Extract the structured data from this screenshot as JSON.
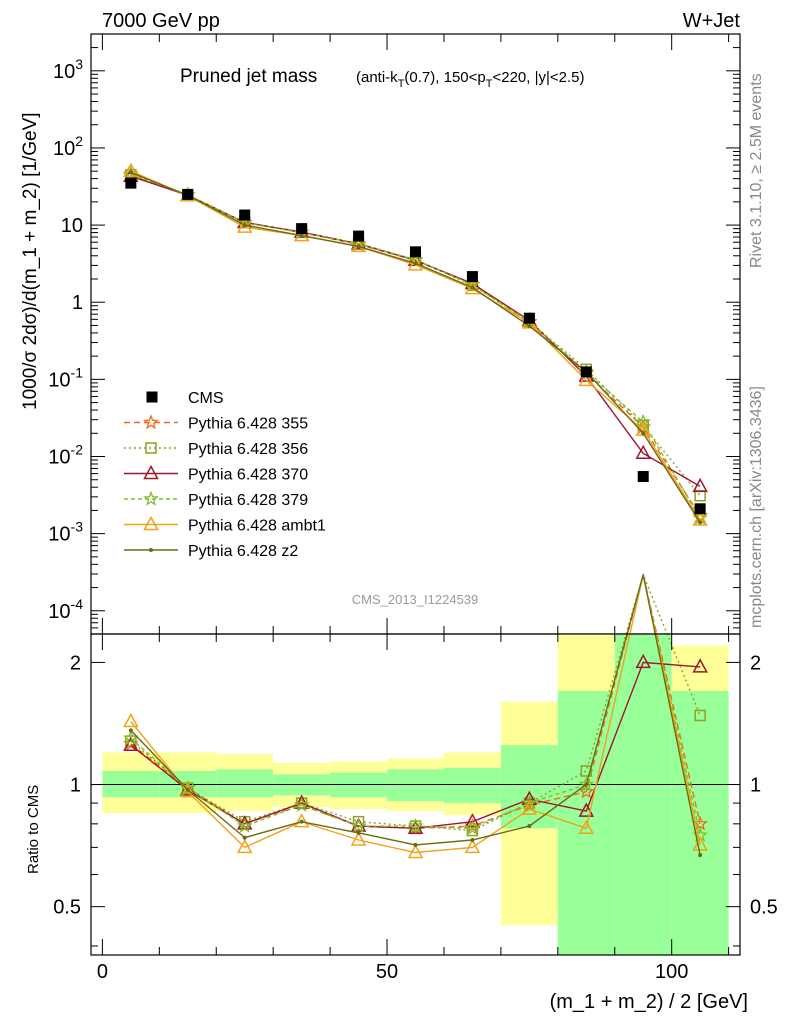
{
  "header": {
    "left": "7000 GeV pp",
    "right": "W+Jet"
  },
  "side_labels": {
    "rivet": "Rivet 3.1.10, ≥ 2.5M events",
    "mcplots": "mcplots.cern.ch [arXiv:1306.3436]"
  },
  "watermark": "CMS_2013_I1224539",
  "colors": {
    "cms": "#000000",
    "p355": "#ee6a1a",
    "p356": "#8fa022",
    "p370": "#a0162e",
    "p379": "#7dc02a",
    "ambt1": "#f0a21a",
    "z2": "#6b6b14",
    "band_green": "#99ff99",
    "band_yellow": "#ffff99"
  },
  "chart_data": {
    "type": "scatter",
    "title": "Pruned jet mass",
    "title_suffix": "(anti-kT(0.7), 150<pT<220, |y|<2.5)",
    "xlabel": "(m_1 + m_2) / 2 [GeV]",
    "ylabel": "1000/σ 2dσ)/d(m_1 + m_2) [1/GeV]",
    "ratio_ylabel": "Ratio to CMS",
    "xlim": [
      -2,
      112
    ],
    "ylim": [
      5e-05,
      3000
    ],
    "yscale": "log",
    "ratio_ylim": [
      0.38,
      2.35
    ],
    "ratio_yscale": "log",
    "xticks": [
      0,
      50,
      100
    ],
    "yticks": [
      "10^-4",
      "10^-3",
      "10^-2",
      "10^-1",
      "1",
      "10",
      "10^2",
      "10^3"
    ],
    "ratio_yticks": [
      0.5,
      1,
      2
    ],
    "legend_placement": "lower-left",
    "x": [
      5,
      15,
      25,
      35,
      45,
      55,
      65,
      75,
      85,
      95,
      105
    ],
    "bin_edges": [
      0,
      10,
      20,
      30,
      40,
      50,
      60,
      70,
      80,
      90,
      100,
      110
    ],
    "cms": [
      35,
      25,
      13.5,
      9,
      7.2,
      4.5,
      2.15,
      0.62,
      0.125,
      0.0055,
      0.0021
    ],
    "series": [
      {
        "name": "Pythia 6.428 355",
        "key": "p355",
        "marker": "star",
        "dash": "6,4",
        "values": [
          44,
          24.5,
          10.8,
          8.0,
          5.6,
          3.5,
          1.7,
          0.55,
          0.12,
          0.024,
          0.0017
        ],
        "ratio": [
          1.26,
          0.98,
          0.8,
          0.89,
          0.79,
          0.78,
          0.79,
          0.89,
          0.96,
          4.4,
          0.8
        ]
      },
      {
        "name": "Pythia 6.428 356",
        "key": "p356",
        "marker": "square",
        "dash": "2,3",
        "values": [
          45,
          24.5,
          10.9,
          8.1,
          5.8,
          3.55,
          1.65,
          0.56,
          0.135,
          0.025,
          0.0031
        ],
        "ratio": [
          1.28,
          0.98,
          0.81,
          0.9,
          0.81,
          0.79,
          0.77,
          0.9,
          1.08,
          4.5,
          1.48
        ]
      },
      {
        "name": "Pythia 6.428 370",
        "key": "p370",
        "marker": "triangle",
        "dash": "",
        "values": [
          43,
          24.3,
          10.8,
          8.1,
          5.7,
          3.5,
          1.75,
          0.58,
          0.11,
          0.011,
          0.0041
        ],
        "ratio": [
          1.25,
          0.97,
          0.8,
          0.9,
          0.79,
          0.78,
          0.81,
          0.92,
          0.86,
          2.0,
          1.95
        ]
      },
      {
        "name": "Pythia 6.428 379",
        "key": "p379",
        "marker": "star",
        "dash": "4,3",
        "values": [
          46,
          24.6,
          10.7,
          8.0,
          5.7,
          3.55,
          1.68,
          0.56,
          0.125,
          0.028,
          0.0016
        ],
        "ratio": [
          1.3,
          0.98,
          0.79,
          0.89,
          0.79,
          0.79,
          0.78,
          0.9,
          1.0,
          5.1,
          0.75
        ]
      },
      {
        "name": "Pythia 6.428 ambt1",
        "key": "ambt1",
        "marker": "triangle",
        "dash": "",
        "values": [
          50,
          24.0,
          9.4,
          7.3,
          5.3,
          3.05,
          1.5,
          0.54,
          0.097,
          0.022,
          0.0015
        ],
        "ratio": [
          1.43,
          0.96,
          0.7,
          0.81,
          0.73,
          0.68,
          0.7,
          0.87,
          0.78,
          4.0,
          0.71
        ]
      },
      {
        "name": "Pythia 6.428 z2",
        "key": "z2",
        "marker": "dot",
        "dash": "",
        "values": [
          48,
          24.3,
          10.0,
          7.3,
          5.3,
          3.2,
          1.55,
          0.49,
          0.125,
          0.02,
          0.0014
        ],
        "ratio": [
          1.36,
          0.97,
          0.74,
          0.81,
          0.76,
          0.71,
          0.73,
          0.79,
          1.0,
          3.6,
          0.67
        ]
      }
    ],
    "bands": {
      "green": [
        [
          0.93,
          1.08
        ],
        [
          0.93,
          1.08
        ],
        [
          0.93,
          1.09
        ],
        [
          0.94,
          1.06
        ],
        [
          0.93,
          1.07
        ],
        [
          0.91,
          1.09
        ],
        [
          0.9,
          1.1
        ],
        [
          0.78,
          1.25
        ],
        [
          0.3,
          1.7
        ],
        [
          0.3,
          2.4
        ],
        [
          0.3,
          1.7
        ]
      ],
      "yellow": [
        [
          0.85,
          1.2
        ],
        [
          0.85,
          1.2
        ],
        [
          0.86,
          1.19
        ],
        [
          0.88,
          1.13
        ],
        [
          0.87,
          1.14
        ],
        [
          0.86,
          1.16
        ],
        [
          0.84,
          1.2
        ],
        [
          0.45,
          1.6
        ],
        [
          0.3,
          2.35
        ],
        [
          0.3,
          2.35
        ],
        [
          0.3,
          2.2
        ]
      ]
    }
  }
}
